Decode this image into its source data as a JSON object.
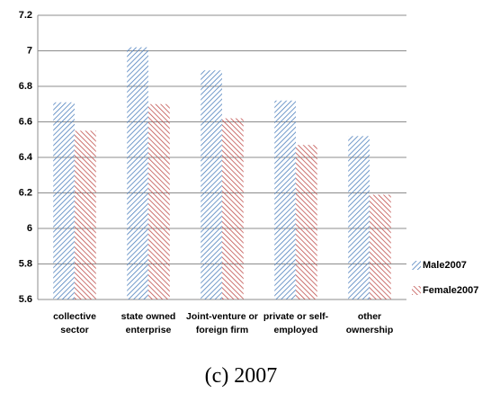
{
  "chart_data": {
    "type": "bar",
    "caption": "(c) 2007",
    "categories": [
      "collective sector",
      "state owned enterprise",
      "Joint-venture or foreign firm",
      "private or self-employed",
      "other ownership"
    ],
    "series": [
      {
        "name": "Male2007",
        "color": "#4f81bd",
        "values": [
          6.71,
          7.02,
          6.89,
          6.72,
          6.52
        ]
      },
      {
        "name": "Female2007",
        "color": "#c0504d",
        "values": [
          6.55,
          6.7,
          6.62,
          6.47,
          6.19
        ]
      }
    ],
    "ylim": [
      5.6,
      7.2
    ],
    "yticks": [
      5.6,
      5.8,
      6,
      6.2,
      6.4,
      6.6,
      6.8,
      7,
      7.2
    ],
    "grid": true,
    "legend": "right"
  }
}
